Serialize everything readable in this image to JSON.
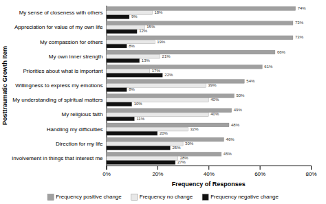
{
  "chart_data": {
    "type": "bar",
    "orientation": "horizontal",
    "categories": [
      "My sense of closeness with others",
      "Appreciation for value of my own life",
      "My compassion for others",
      "My own inner strength",
      "Priorities about what is important",
      "Willingness to express my emotions",
      "My understanding of spiritual matters",
      "My religious faith",
      "Handling my difficulties",
      "Direction for my life",
      "Involvement in things that interest me"
    ],
    "series": [
      {
        "name": "Frequency positive change",
        "color": "#a0a0a0",
        "values": [
          74,
          73,
          73,
          66,
          61,
          54,
          50,
          49,
          48,
          46,
          45
        ],
        "value_labels": [
          "74%",
          "73%",
          "73%",
          "66%",
          "61%",
          "54%",
          "50%",
          "49%",
          "48%",
          "46%",
          "45%"
        ]
      },
      {
        "name": "Frequency no change",
        "color": "#e8e8e8",
        "values": [
          18,
          15,
          19,
          21,
          17,
          39,
          40,
          40,
          32,
          30,
          28
        ],
        "value_labels": [
          "18%",
          "15%",
          "19%",
          "21%",
          "17%",
          "39%",
          "40%",
          "40%",
          "32%",
          "30%",
          "28%"
        ]
      },
      {
        "name": "Frequency negative change",
        "color": "#111111",
        "values": [
          9,
          12,
          8,
          13,
          22,
          8,
          10,
          11,
          20,
          25,
          27
        ],
        "value_labels": [
          "9%",
          "12%",
          "8%",
          "13%",
          "22%",
          "8%",
          "10%",
          "11%",
          "20%",
          "25%",
          "27%"
        ]
      }
    ],
    "xlabel": "Frequency of Responses",
    "ylabel": "Posttraumatic Growth Item",
    "xlim": [
      0,
      80
    ],
    "xticks": [
      {
        "value": 0,
        "label": "0%"
      },
      {
        "value": 20,
        "label": "20%"
      },
      {
        "value": 40,
        "label": "40%"
      },
      {
        "value": 60,
        "label": "60%"
      },
      {
        "value": 80,
        "label": "80%"
      }
    ],
    "data_labels": true,
    "grid": false,
    "legend": "bottom"
  }
}
